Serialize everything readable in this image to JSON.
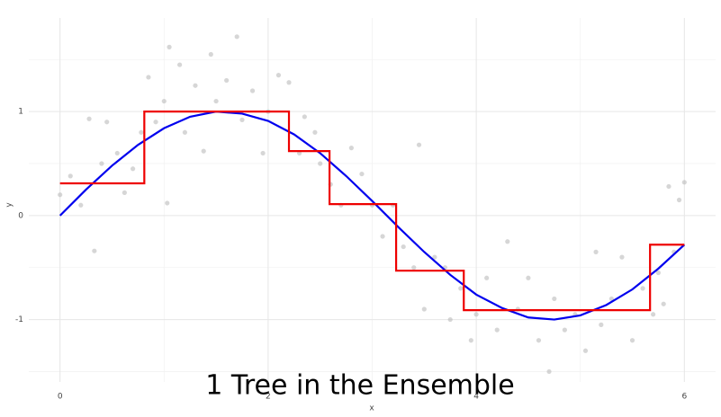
{
  "chart_data": {
    "type": "scatter",
    "title": "1 Tree in the Ensemble",
    "x_label": "x",
    "y_label": "y",
    "xlim": [
      -0.3,
      6.3
    ],
    "ylim": [
      -1.6,
      1.9
    ],
    "xticks": [
      0,
      2,
      4,
      6
    ],
    "yticks": [
      -1,
      0,
      1
    ],
    "x_minor_grid": [
      1,
      3,
      5
    ],
    "y_minor_grid": [
      -1.5,
      -0.5,
      0.5,
      1.5
    ],
    "grid": true,
    "series": [
      {
        "type": "scatter",
        "color": "#bbbbbb",
        "x": [
          0.0,
          0.1,
          0.2,
          0.28,
          0.33,
          0.4,
          0.45,
          0.55,
          0.62,
          0.7,
          0.78,
          0.85,
          0.92,
          1.0,
          1.03,
          1.05,
          1.15,
          1.2,
          1.3,
          1.38,
          1.45,
          1.5,
          1.6,
          1.7,
          1.75,
          1.85,
          1.95,
          2.0,
          2.1,
          2.2,
          2.3,
          2.35,
          2.45,
          2.5,
          2.6,
          2.7,
          2.8,
          2.9,
          3.0,
          3.1,
          3.2,
          3.3,
          3.4,
          3.45,
          3.5,
          3.6,
          3.7,
          3.75,
          3.85,
          3.95,
          4.0,
          4.1,
          4.2,
          4.3,
          4.4,
          4.5,
          4.6,
          4.7,
          4.75,
          4.85,
          4.95,
          5.05,
          5.15,
          5.2,
          5.3,
          5.4,
          5.5,
          5.6,
          5.7,
          5.75,
          5.8,
          5.85,
          5.9,
          5.95,
          6.0
        ],
        "values": [
          0.2,
          0.38,
          0.1,
          0.93,
          -0.34,
          0.5,
          0.9,
          0.6,
          0.22,
          0.45,
          0.8,
          1.33,
          0.9,
          1.1,
          0.12,
          1.62,
          1.45,
          0.8,
          1.25,
          0.62,
          1.55,
          1.1,
          1.3,
          1.72,
          0.92,
          1.2,
          0.6,
          1.0,
          1.35,
          1.28,
          0.6,
          0.95,
          0.8,
          0.5,
          0.3,
          0.1,
          0.65,
          0.4,
          0.1,
          -0.2,
          0.1,
          -0.3,
          -0.5,
          0.68,
          -0.9,
          -0.4,
          -0.5,
          -1.0,
          -0.7,
          -1.2,
          -0.95,
          -0.6,
          -1.1,
          -0.25,
          -0.9,
          -0.6,
          -1.2,
          -1.5,
          -0.8,
          -1.1,
          -0.95,
          -1.3,
          -0.35,
          -1.05,
          -0.8,
          -0.4,
          -1.2,
          -0.7,
          -0.95,
          -0.55,
          -0.85,
          0.28,
          -0.35,
          0.15,
          0.32
        ]
      },
      {
        "type": "line",
        "color": "#0000ee",
        "x": [
          0,
          0.25,
          0.5,
          0.75,
          1,
          1.25,
          1.5,
          1.75,
          2,
          2.25,
          2.5,
          2.75,
          3,
          3.25,
          3.5,
          3.75,
          4,
          4.25,
          4.5,
          4.75,
          5,
          5.25,
          5.5,
          5.75,
          6
        ],
        "values": [
          0,
          0.25,
          0.48,
          0.68,
          0.84,
          0.95,
          1.0,
          0.98,
          0.91,
          0.78,
          0.6,
          0.38,
          0.14,
          -0.11,
          -0.35,
          -0.57,
          -0.76,
          -0.89,
          -0.98,
          -1.0,
          -0.96,
          -0.86,
          -0.71,
          -0.51,
          -0.28
        ]
      },
      {
        "type": "line",
        "color": "#ee0000",
        "x": [
          0,
          0.81,
          0.81,
          2.2,
          2.2,
          2.59,
          2.59,
          3.23,
          3.23,
          3.88,
          3.88,
          5.67,
          5.67,
          6
        ],
        "values": [
          0.31,
          0.31,
          1.0,
          1.0,
          0.62,
          0.62,
          0.11,
          0.11,
          -0.53,
          -0.53,
          -0.91,
          -0.91,
          -0.28,
          -0.28
        ]
      }
    ]
  }
}
